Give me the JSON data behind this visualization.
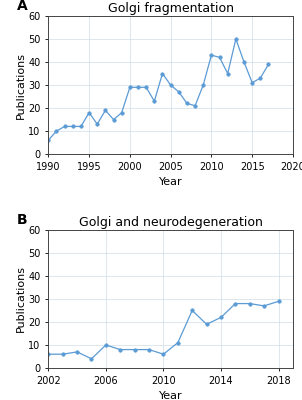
{
  "chart_A": {
    "title": "Golgi fragmentation",
    "label": "A",
    "years": [
      1990,
      1991,
      1992,
      1993,
      1994,
      1995,
      1996,
      1997,
      1998,
      1999,
      2000,
      2001,
      2002,
      2003,
      2004,
      2005,
      2006,
      2007,
      2008,
      2009,
      2010,
      2011,
      2012,
      2013,
      2014,
      2015,
      2016,
      2017
    ],
    "values": [
      6,
      10,
      12,
      12,
      12,
      18,
      13,
      19,
      15,
      18,
      29,
      29,
      29,
      23,
      35,
      30,
      27,
      22,
      21,
      30,
      43,
      42,
      35,
      50,
      40,
      31,
      33,
      39
    ],
    "xlim": [
      1990,
      2020
    ],
    "xticks": [
      1990,
      1995,
      2000,
      2005,
      2010,
      2015,
      2020
    ],
    "ylim": [
      0,
      60
    ],
    "yticks": [
      0,
      10,
      20,
      30,
      40,
      50,
      60
    ],
    "xlabel": "Year",
    "ylabel": "Publications",
    "line_color": "#5b9bd5",
    "marker": "o",
    "marker_size": 2.5
  },
  "chart_B": {
    "title": "Golgi and neurodegeneration",
    "label": "B",
    "years": [
      2002,
      2003,
      2004,
      2005,
      2006,
      2007,
      2008,
      2009,
      2010,
      2011,
      2012,
      2013,
      2014,
      2015,
      2016,
      2017,
      2018
    ],
    "values": [
      6,
      6,
      7,
      4,
      10,
      8,
      8,
      8,
      6,
      11,
      25,
      19,
      22,
      28,
      28,
      27,
      29
    ],
    "xlim": [
      2002,
      2019
    ],
    "xticks": [
      2002,
      2006,
      2010,
      2014,
      2018
    ],
    "ylim": [
      0,
      60
    ],
    "yticks": [
      0,
      10,
      20,
      30,
      40,
      50,
      60
    ],
    "xlabel": "Year",
    "ylabel": "Publications",
    "line_color": "#5b9bd5",
    "marker": "o",
    "marker_size": 2.5
  },
  "bg_color": "#ffffff",
  "grid_color": "#d0dce8",
  "tick_fontsize": 7,
  "label_fontsize": 8,
  "title_fontsize": 9,
  "ab_fontsize": 10
}
